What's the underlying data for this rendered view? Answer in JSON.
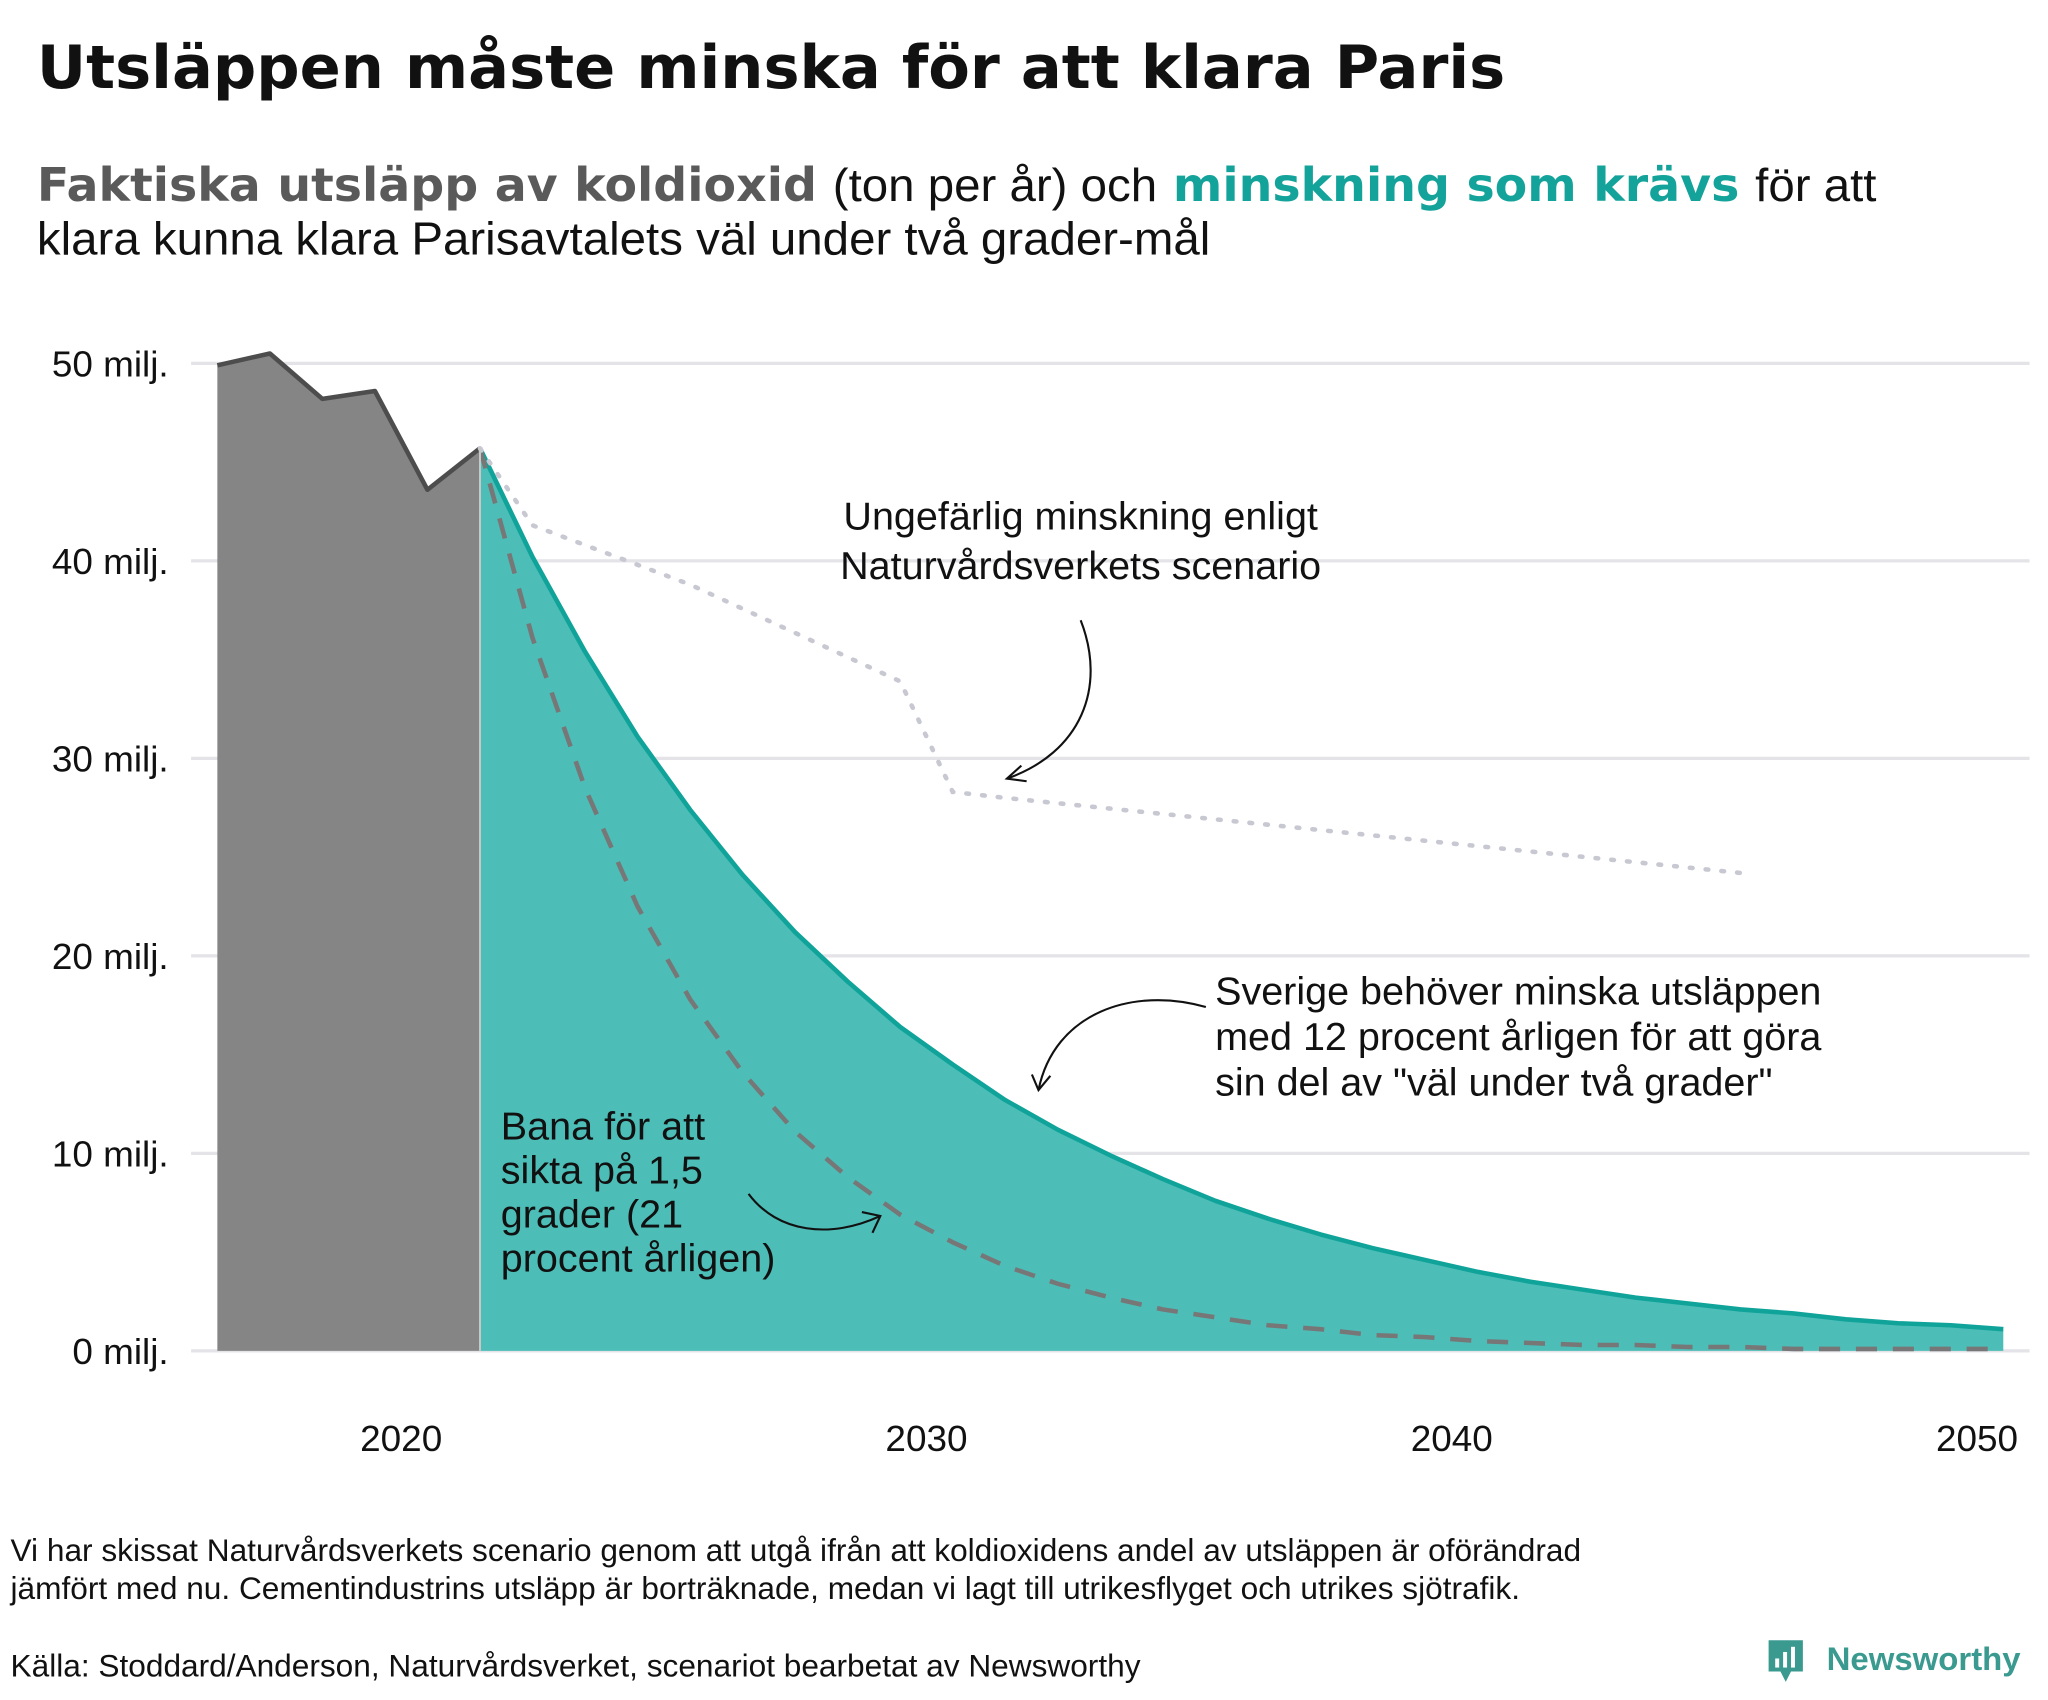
{
  "chart_data": {
    "type": "area",
    "title": "Utsläppen måste minska för att klara Paris",
    "subtitle": [
      "Faktiska utsläpp av koldioxid",
      "(ton per år) och",
      "minskning som krävs",
      "för att",
      "klara kunna klara Parisavtalets väl under två grader-mål"
    ],
    "subtitle_colors": [
      "#5a5a5a",
      "#111111",
      "#14a39a",
      "#111111",
      "#111111"
    ],
    "xlim": [
      2016,
      2051
    ],
    "ylim": [
      0,
      50
    ],
    "xticks": [
      2020,
      2030,
      2040,
      2050
    ],
    "yticks": [
      {
        "value": 0,
        "label": "0 milj."
      },
      {
        "value": 10,
        "label": "10 milj."
      },
      {
        "value": 20,
        "label": "20 milj."
      },
      {
        "value": 30,
        "label": "30 milj."
      },
      {
        "value": 40,
        "label": "40 milj."
      },
      {
        "value": 50,
        "label": "50 milj."
      }
    ],
    "grid": true,
    "series": [
      {
        "kind": "area",
        "color": "#858585",
        "stroke": "#4d4d4d",
        "x": [
          2016.5,
          2017.5,
          2018.5,
          2019.5,
          2020.5,
          2021.5
        ],
        "values": [
          49.9,
          50.5,
          48.2,
          48.6,
          43.6,
          45.7
        ]
      },
      {
        "kind": "area",
        "color": "#4dbdb7",
        "stroke": "#0fa39a",
        "x": [
          2021.5,
          2022.5,
          2023.5,
          2024.5,
          2025.5,
          2026.5,
          2027.5,
          2028.5,
          2029.5,
          2030.5,
          2031.5,
          2032.5,
          2033.5,
          2034.5,
          2035.5,
          2036.5,
          2037.5,
          2038.5,
          2039.5,
          2040.5,
          2041.5,
          2042.5,
          2043.5,
          2044.5,
          2045.5,
          2046.5,
          2047.5,
          2048.5,
          2049.5,
          2050.5
        ],
        "values": [
          45.7,
          40.2,
          35.4,
          31.1,
          27.4,
          24.1,
          21.2,
          18.7,
          16.4,
          14.5,
          12.7,
          11.2,
          9.9,
          8.7,
          7.6,
          6.7,
          5.9,
          5.2,
          4.6,
          4.0,
          3.5,
          3.1,
          2.7,
          2.4,
          2.1,
          1.9,
          1.6,
          1.4,
          1.3,
          1.1
        ]
      },
      {
        "kind": "line",
        "color": "#777777",
        "dash": "dashed",
        "x": [
          2021.5,
          2022.5,
          2023.5,
          2024.5,
          2025.5,
          2026.5,
          2027.5,
          2028.5,
          2029.5,
          2030.5,
          2031.5,
          2032.5,
          2033.5,
          2034.5,
          2035.5,
          2036.5,
          2037.5,
          2038.5,
          2039.5,
          2040.5,
          2041.5,
          2042.5,
          2043.5,
          2044.5,
          2045.5,
          2046.5,
          2047.5,
          2048.5,
          2049.5,
          2050.5
        ],
        "values": [
          45.7,
          36.1,
          28.5,
          22.5,
          17.8,
          14.1,
          11.1,
          8.8,
          6.9,
          5.5,
          4.3,
          3.4,
          2.7,
          2.1,
          1.7,
          1.3,
          1.1,
          0.8,
          0.7,
          0.5,
          0.4,
          0.3,
          0.3,
          0.2,
          0.2,
          0.1,
          0.1,
          0.1,
          0.1,
          0.1
        ]
      },
      {
        "kind": "line",
        "color": "#c8c8d2",
        "dash": "dotted",
        "x": [
          2021.5,
          2022.5,
          2025.5,
          2029.5,
          2030.5,
          2031.5,
          2045.5
        ],
        "values": [
          45.7,
          41.8,
          38.8,
          33.9,
          28.3,
          28.0,
          24.2
        ]
      }
    ],
    "annotations": [
      {
        "lines": [
          "Ungefärlig minskning enligt",
          "Naturvårdsverkets scenario"
        ]
      },
      {
        "lines": [
          "Sverige behöver minska utsläppen",
          "med 12 procent årligen för att göra",
          "sin del av \"väl under två grader\""
        ]
      },
      {
        "lines": [
          "Bana för att",
          "sikta på 1,5",
          "grader (21",
          "procent årligen)"
        ]
      }
    ],
    "footnote": [
      "Vi har skissat Naturvårdsverkets scenario genom att utgå ifrån att koldioxidens andel av utsläppen är oförändrad",
      "jämfört med nu. Cementindustrins utsläpp är borträknade, medan vi lagt till utrikesflyget och utrikes sjötrafik."
    ],
    "source": "Källa: Stoddard/Anderson, Naturvårdsverket, scenariot bearbetat av Newsworthy",
    "logo": "Newsworthy"
  }
}
